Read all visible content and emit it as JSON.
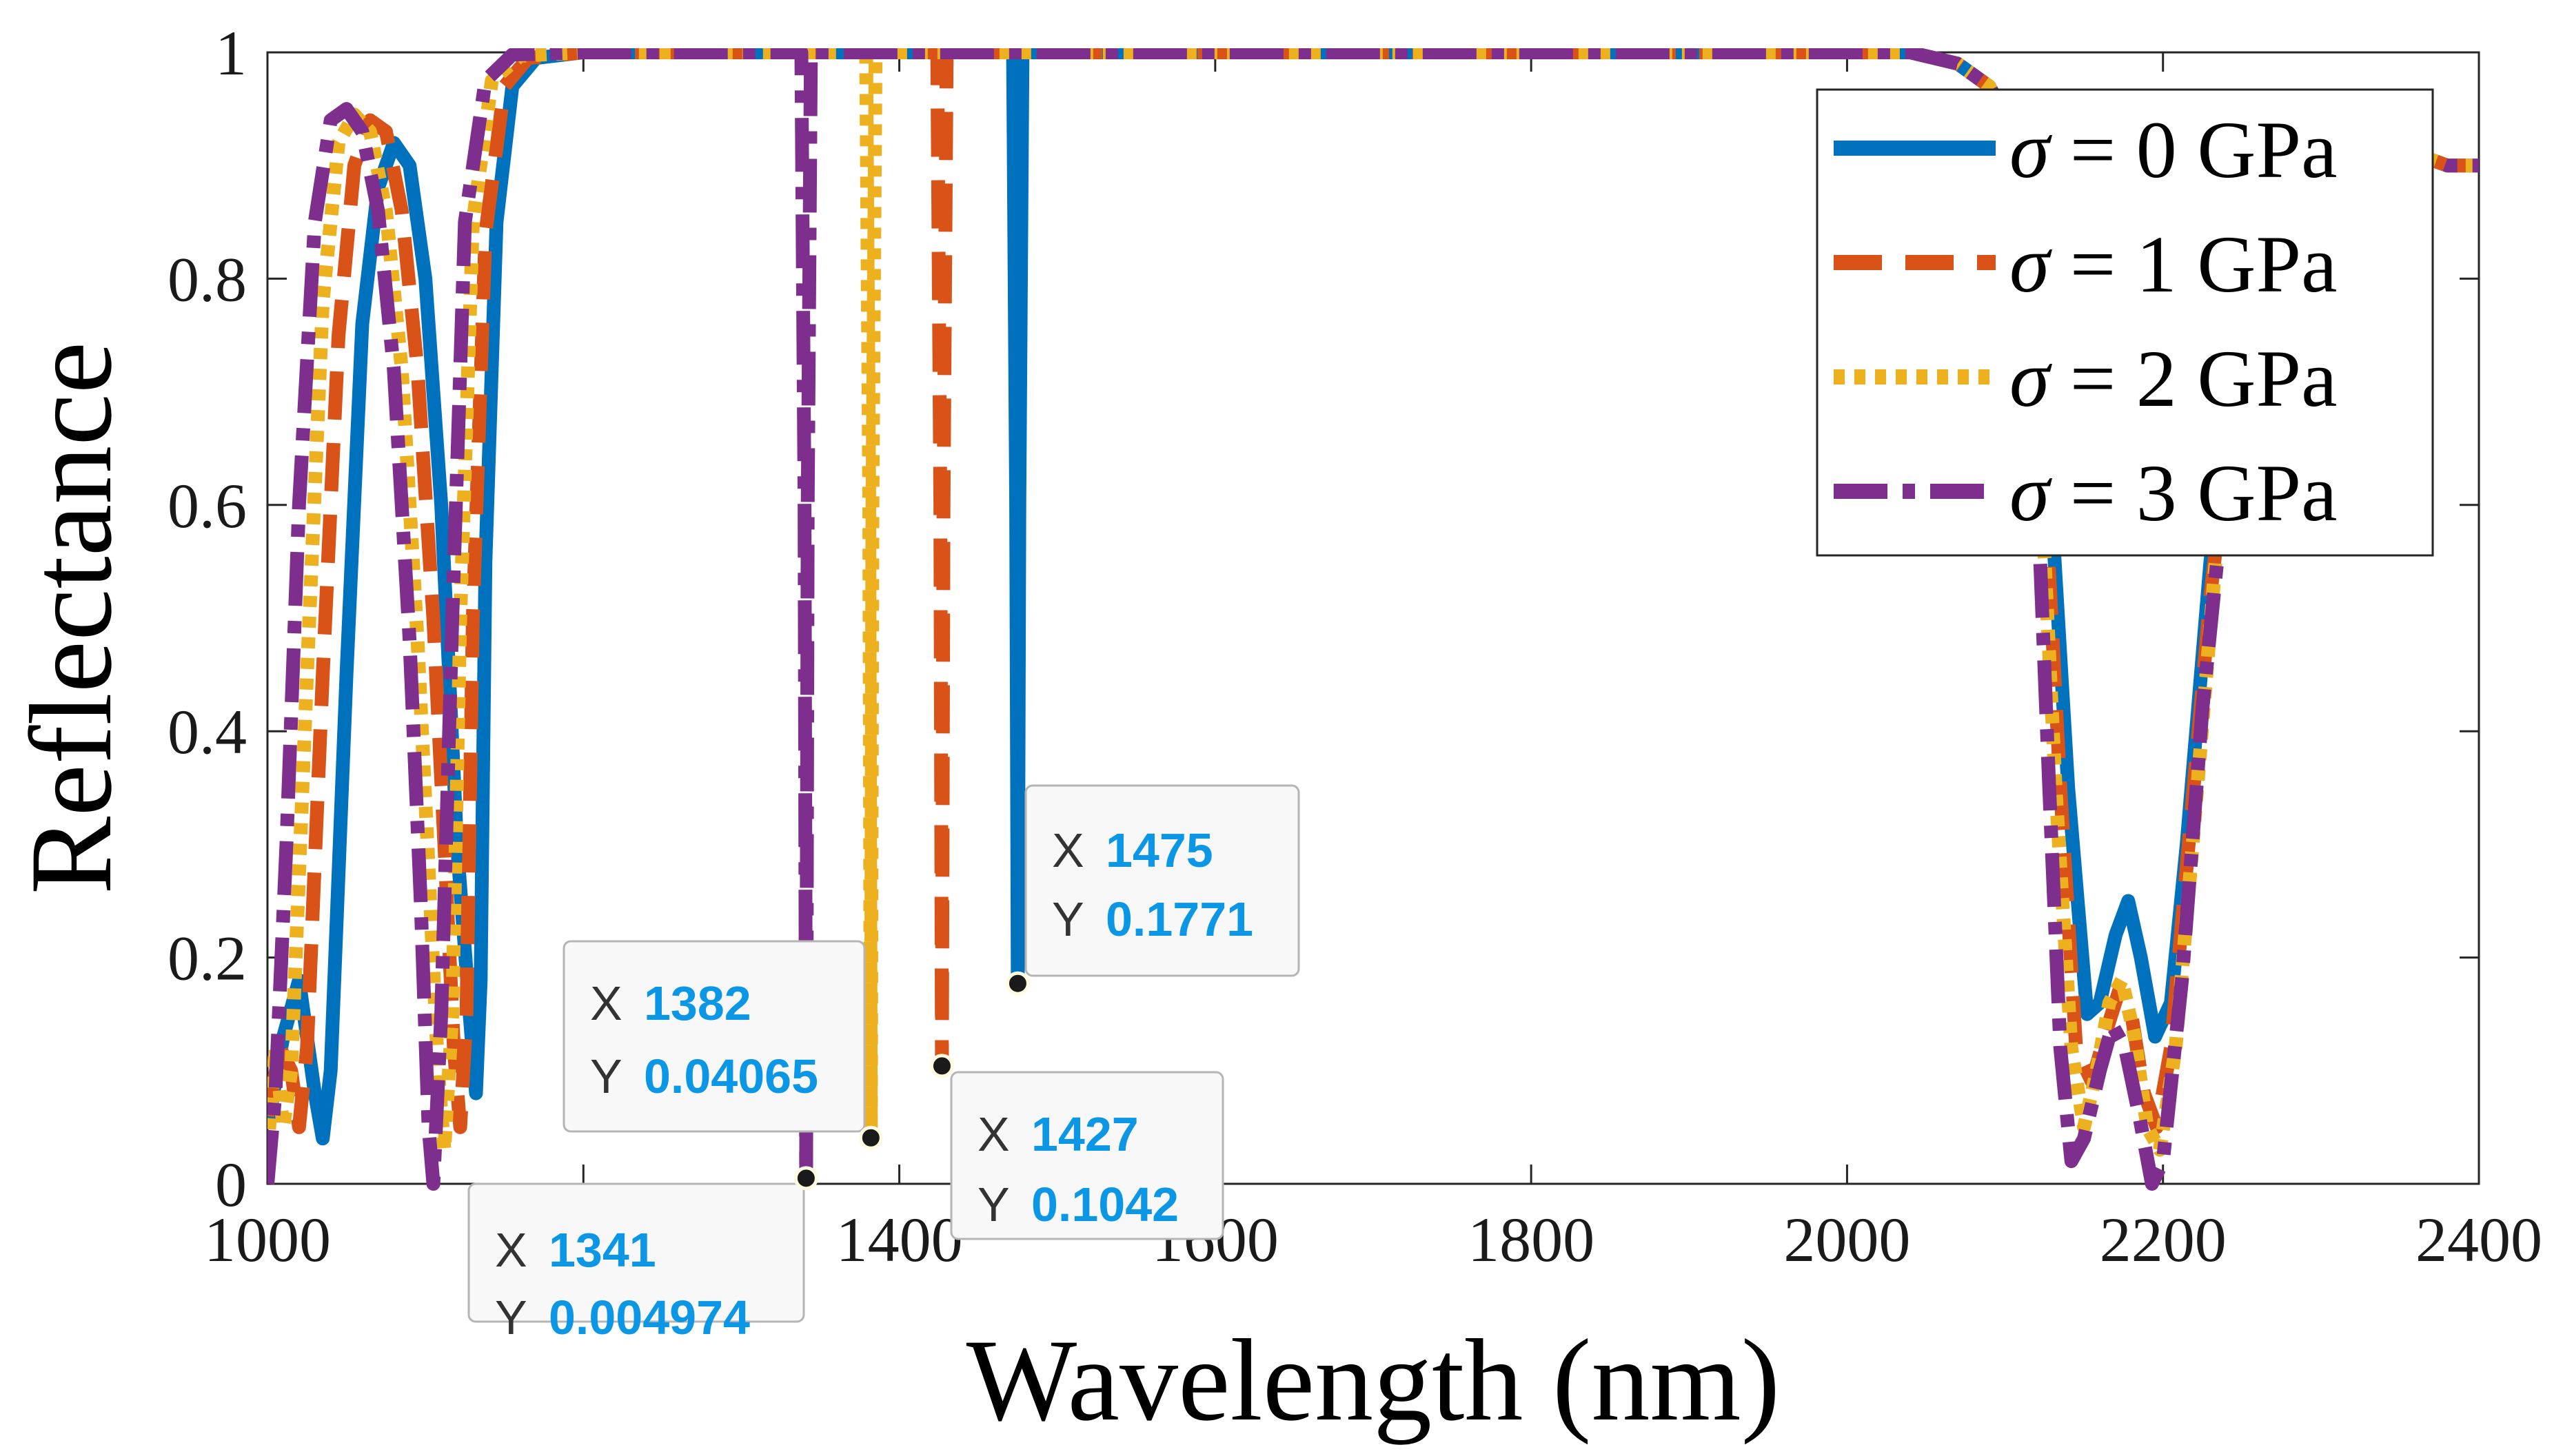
{
  "chart_data": {
    "type": "line",
    "title": "",
    "xlabel": "Wavelength (nm)",
    "ylabel": "Reflectance",
    "xlim": [
      1000,
      2400
    ],
    "ylim": [
      0,
      1
    ],
    "xticks": [
      1000,
      1200,
      1400,
      1600,
      1800,
      2000,
      2200,
      2400
    ],
    "yticks": [
      0,
      0.2,
      0.4,
      0.6,
      0.8,
      1
    ],
    "xtick_labels": [
      "1000",
      "1200",
      "1400",
      "1600",
      "1800",
      "2000",
      "2200",
      "2400"
    ],
    "ytick_labels": [
      "0",
      "0.2",
      "0.4",
      "0.6",
      "0.8",
      "1"
    ],
    "grid": false,
    "legend_position": "top-right",
    "series": [
      {
        "name": "σ = 0 GPa",
        "sigma_label": "σ",
        "value_label": " = 0 GPa",
        "color": "#0072BD",
        "style": "solid",
        "points": [
          [
            1000,
            0.05
          ],
          [
            1010,
            0.13
          ],
          [
            1020,
            0.18
          ],
          [
            1030,
            0.08
          ],
          [
            1035,
            0.04
          ],
          [
            1040,
            0.1
          ],
          [
            1050,
            0.45
          ],
          [
            1060,
            0.76
          ],
          [
            1070,
            0.88
          ],
          [
            1080,
            0.92
          ],
          [
            1090,
            0.9
          ],
          [
            1100,
            0.8
          ],
          [
            1110,
            0.6
          ],
          [
            1115,
            0.45
          ],
          [
            1120,
            0.3
          ],
          [
            1128,
            0.15
          ],
          [
            1132,
            0.08
          ],
          [
            1135,
            0.18
          ],
          [
            1138,
            0.55
          ],
          [
            1145,
            0.85
          ],
          [
            1155,
            0.97
          ],
          [
            1170,
            0.995
          ],
          [
            1200,
            1.0
          ],
          [
            1472,
            1.0
          ],
          [
            1474,
            0.6
          ],
          [
            1475,
            0.1771
          ],
          [
            1476,
            0.6
          ],
          [
            1478,
            1.0
          ],
          [
            2040,
            1.0
          ],
          [
            2070,
            0.99
          ],
          [
            2090,
            0.97
          ],
          [
            2110,
            0.92
          ],
          [
            2125,
            0.7
          ],
          [
            2140,
            0.35
          ],
          [
            2152,
            0.15
          ],
          [
            2160,
            0.16
          ],
          [
            2170,
            0.22
          ],
          [
            2178,
            0.25
          ],
          [
            2186,
            0.2
          ],
          [
            2195,
            0.13
          ],
          [
            2205,
            0.16
          ],
          [
            2215,
            0.3
          ],
          [
            2230,
            0.55
          ],
          [
            2250,
            0.78
          ],
          [
            2270,
            0.89
          ],
          [
            2300,
            0.91
          ],
          [
            2340,
            0.92
          ],
          [
            2380,
            0.9
          ],
          [
            2400,
            0.9
          ]
        ]
      },
      {
        "name": "σ = 1 GPa",
        "sigma_label": "σ",
        "value_label": " = 1 GPa",
        "color": "#D95319",
        "style": "dashed",
        "points": [
          [
            1000,
            0.06
          ],
          [
            1008,
            0.12
          ],
          [
            1015,
            0.1
          ],
          [
            1020,
            0.05
          ],
          [
            1025,
            0.12
          ],
          [
            1035,
            0.45
          ],
          [
            1045,
            0.75
          ],
          [
            1055,
            0.9
          ],
          [
            1065,
            0.94
          ],
          [
            1075,
            0.93
          ],
          [
            1085,
            0.86
          ],
          [
            1095,
            0.72
          ],
          [
            1105,
            0.5
          ],
          [
            1112,
            0.3
          ],
          [
            1118,
            0.12
          ],
          [
            1122,
            0.05
          ],
          [
            1126,
            0.15
          ],
          [
            1130,
            0.5
          ],
          [
            1138,
            0.84
          ],
          [
            1150,
            0.97
          ],
          [
            1165,
            0.995
          ],
          [
            1200,
            1.0
          ],
          [
            1424,
            1.0
          ],
          [
            1426,
            0.6
          ],
          [
            1427,
            0.1042
          ],
          [
            1428,
            0.6
          ],
          [
            1430,
            1.0
          ],
          [
            2040,
            1.0
          ],
          [
            2070,
            0.99
          ],
          [
            2090,
            0.97
          ],
          [
            2110,
            0.92
          ],
          [
            2122,
            0.7
          ],
          [
            2135,
            0.35
          ],
          [
            2145,
            0.12
          ],
          [
            2155,
            0.09
          ],
          [
            2163,
            0.13
          ],
          [
            2172,
            0.17
          ],
          [
            2180,
            0.15
          ],
          [
            2188,
            0.08
          ],
          [
            2196,
            0.05
          ],
          [
            2205,
            0.12
          ],
          [
            2215,
            0.28
          ],
          [
            2230,
            0.52
          ],
          [
            2250,
            0.76
          ],
          [
            2270,
            0.88
          ],
          [
            2300,
            0.91
          ],
          [
            2340,
            0.92
          ],
          [
            2380,
            0.9
          ],
          [
            2400,
            0.9
          ]
        ]
      },
      {
        "name": "σ = 2 GPa",
        "sigma_label": "σ",
        "value_label": " = 2 GPa",
        "color": "#EDB120",
        "style": "dotted",
        "points": [
          [
            1000,
            0.03
          ],
          [
            1005,
            0.12
          ],
          [
            1010,
            0.05
          ],
          [
            1015,
            0.1
          ],
          [
            1025,
            0.45
          ],
          [
            1035,
            0.78
          ],
          [
            1045,
            0.92
          ],
          [
            1055,
            0.945
          ],
          [
            1065,
            0.93
          ],
          [
            1075,
            0.86
          ],
          [
            1085,
            0.72
          ],
          [
            1095,
            0.48
          ],
          [
            1102,
            0.28
          ],
          [
            1108,
            0.1
          ],
          [
            1112,
            0.03
          ],
          [
            1117,
            0.15
          ],
          [
            1122,
            0.5
          ],
          [
            1130,
            0.85
          ],
          [
            1142,
            0.975
          ],
          [
            1160,
            0.997
          ],
          [
            1200,
            1.0
          ],
          [
            1379,
            1.0
          ],
          [
            1381,
            0.6
          ],
          [
            1382,
            0.04065
          ],
          [
            1383,
            0.6
          ],
          [
            1385,
            1.0
          ],
          [
            2040,
            1.0
          ],
          [
            2070,
            0.99
          ],
          [
            2090,
            0.97
          ],
          [
            2110,
            0.92
          ],
          [
            2120,
            0.7
          ],
          [
            2132,
            0.35
          ],
          [
            2142,
            0.12
          ],
          [
            2150,
            0.05
          ],
          [
            2158,
            0.1
          ],
          [
            2166,
            0.16
          ],
          [
            2174,
            0.18
          ],
          [
            2182,
            0.13
          ],
          [
            2190,
            0.05
          ],
          [
            2198,
            0.03
          ],
          [
            2208,
            0.12
          ],
          [
            2220,
            0.32
          ],
          [
            2235,
            0.58
          ],
          [
            2255,
            0.8
          ],
          [
            2275,
            0.89
          ],
          [
            2300,
            0.91
          ],
          [
            2340,
            0.92
          ],
          [
            2380,
            0.9
          ],
          [
            2400,
            0.9
          ]
        ]
      },
      {
        "name": "σ = 3 GPa",
        "sigma_label": "σ",
        "value_label": " = 3 GPa",
        "color": "#7E2F8E",
        "style": "dashdot",
        "points": [
          [
            1000,
            0.0
          ],
          [
            1005,
            0.08
          ],
          [
            1012,
            0.3
          ],
          [
            1020,
            0.6
          ],
          [
            1030,
            0.85
          ],
          [
            1040,
            0.94
          ],
          [
            1050,
            0.95
          ],
          [
            1060,
            0.93
          ],
          [
            1070,
            0.86
          ],
          [
            1080,
            0.72
          ],
          [
            1090,
            0.48
          ],
          [
            1097,
            0.25
          ],
          [
            1102,
            0.05
          ],
          [
            1105,
            0.0
          ],
          [
            1110,
            0.15
          ],
          [
            1117,
            0.5
          ],
          [
            1125,
            0.85
          ],
          [
            1138,
            0.975
          ],
          [
            1155,
            0.998
          ],
          [
            1200,
            1.0
          ],
          [
            1338,
            1.0
          ],
          [
            1340,
            0.6
          ],
          [
            1341,
            0.004974
          ],
          [
            1342,
            0.6
          ],
          [
            1344,
            1.0
          ],
          [
            2040,
            1.0
          ],
          [
            2070,
            0.99
          ],
          [
            2090,
            0.97
          ],
          [
            2110,
            0.92
          ],
          [
            2118,
            0.7
          ],
          [
            2128,
            0.35
          ],
          [
            2135,
            0.12
          ],
          [
            2142,
            0.02
          ],
          [
            2150,
            0.04
          ],
          [
            2160,
            0.1
          ],
          [
            2168,
            0.14
          ],
          [
            2176,
            0.12
          ],
          [
            2185,
            0.06
          ],
          [
            2193,
            0.0
          ],
          [
            2200,
            0.02
          ],
          [
            2212,
            0.18
          ],
          [
            2225,
            0.42
          ],
          [
            2245,
            0.7
          ],
          [
            2265,
            0.86
          ],
          [
            2300,
            0.91
          ],
          [
            2340,
            0.92
          ],
          [
            2380,
            0.9
          ],
          [
            2400,
            0.9
          ]
        ]
      }
    ],
    "datatips": [
      {
        "name": "datatip-1341",
        "x": 1341,
        "y": 0.004974,
        "x_label": "X",
        "y_label": "Y",
        "x_text": "1341",
        "y_text": "0.004974"
      },
      {
        "name": "datatip-1382",
        "x": 1382,
        "y": 0.04065,
        "x_label": "X",
        "y_label": "Y",
        "x_text": "1382",
        "y_text": "0.04065"
      },
      {
        "name": "datatip-1427",
        "x": 1427,
        "y": 0.1042,
        "x_label": "X",
        "y_label": "Y",
        "x_text": "1427",
        "y_text": "0.1042"
      },
      {
        "name": "datatip-1475",
        "x": 1475,
        "y": 0.1771,
        "x_label": "X",
        "y_label": "Y",
        "x_text": "1475",
        "y_text": "0.1771"
      }
    ]
  }
}
